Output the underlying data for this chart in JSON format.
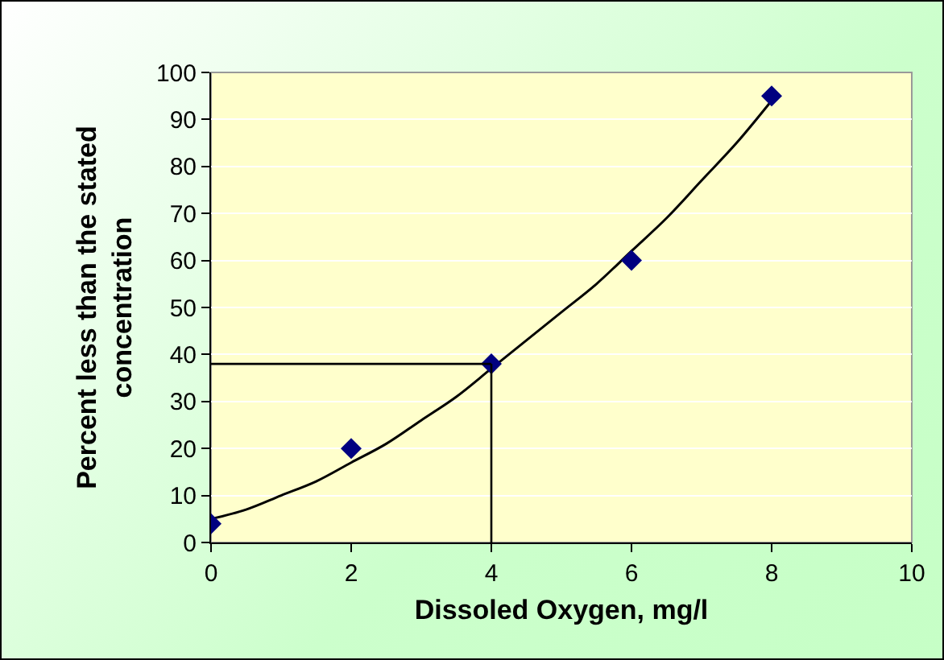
{
  "chart_data": {
    "type": "scatter",
    "xlabel": "Dissoled Oxygen, mg/l",
    "ylabel": "Percent less than the stated concentration",
    "x": [
      0,
      2,
      4,
      6,
      8
    ],
    "series": [
      {
        "color": "#000080",
        "marker": "diamond",
        "values": [
          4,
          20,
          38,
          60,
          95
        ]
      },
      {
        "type": "line",
        "color": "#000000",
        "marker": "none",
        "x": [
          0,
          0.5,
          1,
          1.5,
          2,
          2.5,
          3,
          3.5,
          4,
          4.5,
          5,
          5.5,
          6,
          6.5,
          7,
          7.5,
          8
        ],
        "values": [
          5,
          7,
          10,
          13,
          17,
          21,
          26,
          31,
          37,
          43,
          49,
          55,
          62,
          69,
          77,
          85,
          94
        ]
      }
    ],
    "ref_lines": [
      {
        "axis": "y",
        "value": 38,
        "color": "#000000"
      },
      {
        "axis": "x",
        "value": 4,
        "color": "#000000"
      }
    ],
    "xlim": [
      0,
      10
    ],
    "xticks": [
      0,
      2,
      4,
      6,
      8,
      10
    ],
    "ylim": [
      0,
      100
    ],
    "yticks": [
      0,
      10,
      20,
      30,
      40,
      50,
      60,
      70,
      80,
      90,
      100
    ],
    "grid": "y"
  }
}
